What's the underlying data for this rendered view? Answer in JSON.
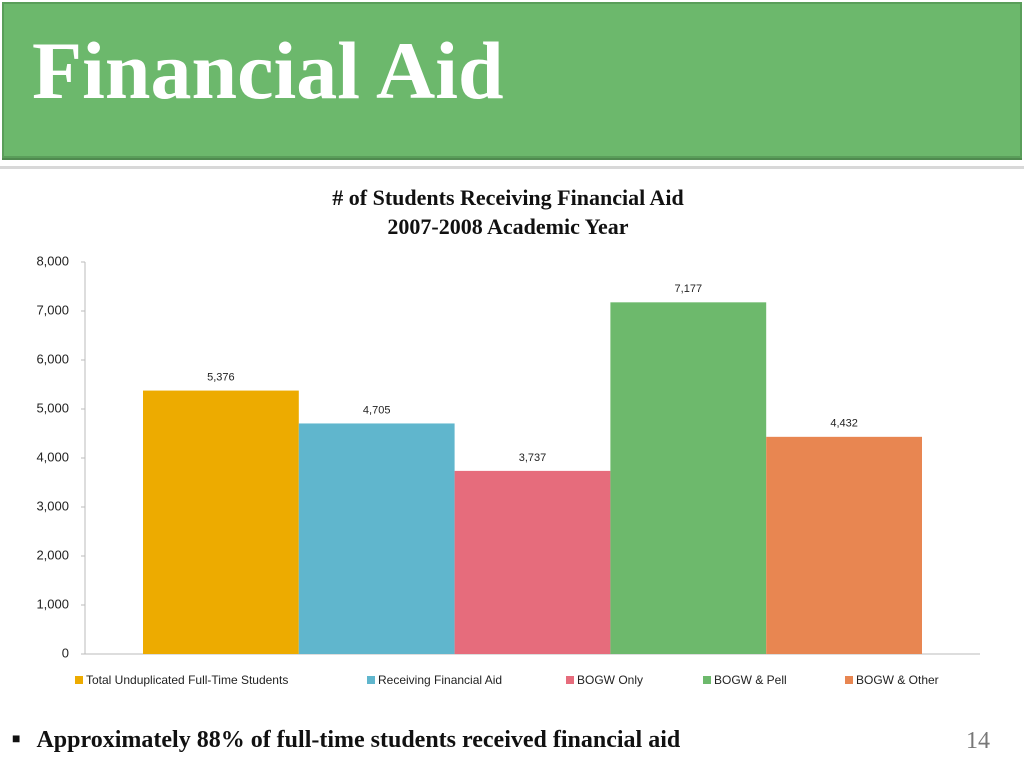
{
  "header": {
    "title": "Financial Aid"
  },
  "chart_data": {
    "type": "bar",
    "title": "# of Students Receiving Financial Aid",
    "subtitle": "2007-2008 Academic Year",
    "series": [
      {
        "name": "Total Unduplicated Full-Time Students",
        "color": "#edab00",
        "values": [
          5376
        ],
        "value_labels": [
          "5,376"
        ]
      },
      {
        "name": "Receiving Financial Aid",
        "color": "#60b6cd",
        "values": [
          4705
        ],
        "value_labels": [
          "4,705"
        ]
      },
      {
        "name": "BOGW Only",
        "color": "#e66c7c",
        "values": [
          3737
        ],
        "value_labels": [
          "3,737"
        ]
      },
      {
        "name": "BOGW & Pell",
        "color": "#6db96c",
        "values": [
          7177
        ],
        "value_labels": [
          "7,177"
        ]
      },
      {
        "name": "BOGW & Other",
        "color": "#e88651",
        "values": [
          4432
        ],
        "value_labels": [
          "4,432"
        ]
      }
    ],
    "ylim": [
      0,
      8000
    ],
    "yticks": [
      0,
      {
        "value": 1000,
        "label": "1,000"
      },
      {
        "value": 2000,
        "label": "2,000"
      },
      {
        "value": 3000,
        "label": "3,000"
      },
      {
        "value": 4000,
        "label": "4,000"
      },
      {
        "value": 5000,
        "label": "5,000"
      },
      {
        "value": 6000,
        "label": "6,000"
      },
      {
        "value": 7000,
        "label": "7,000"
      },
      {
        "value": 8000,
        "label": "8,000"
      }
    ],
    "grid": false,
    "legend": "bottom"
  },
  "footer": {
    "bullet": "Approximately 88% of full-time students received financial aid",
    "page_number": 14
  }
}
